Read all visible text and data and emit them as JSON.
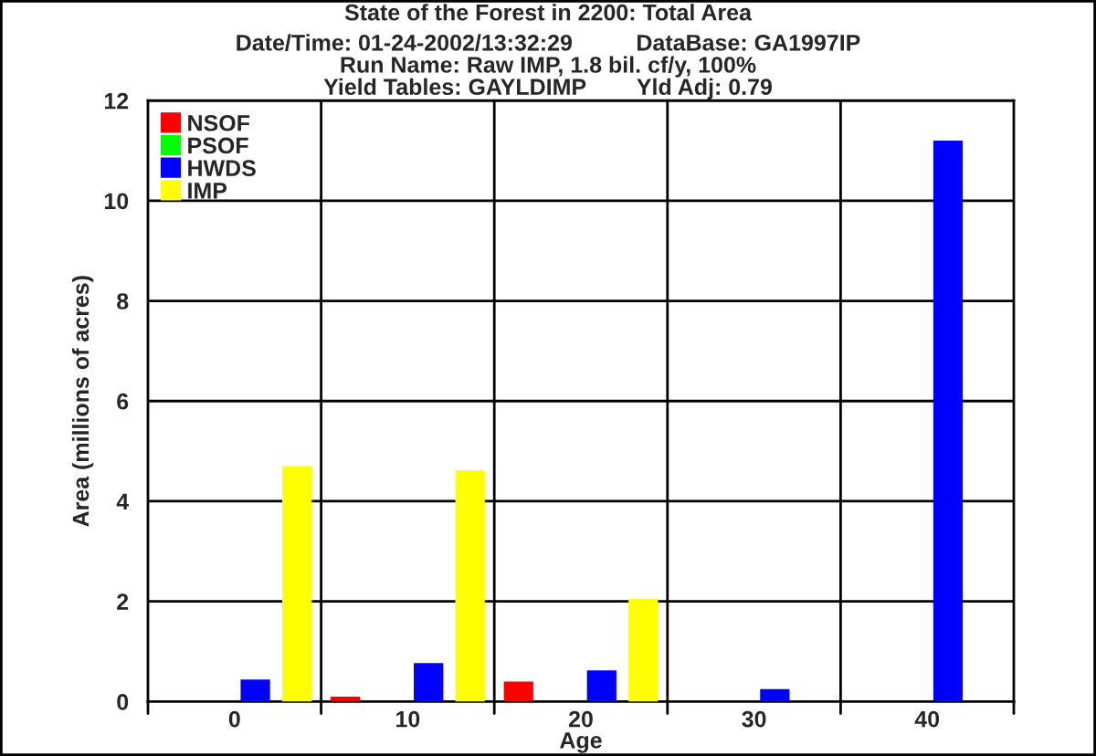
{
  "chart_data": {
    "type": "bar",
    "title": "State of the Forest in 2200: Total Area",
    "subtitle": "Date/Time: 01-24-2002/13:32:29          DataBase: GA1997IP\nRun Name: Raw IMP, 1.8 bil. cf/y, 100%\nYield Tables: GAYLDIMP        Yld Adj: 0.79",
    "xlabel": "Age",
    "ylabel": "Area (millions of acres)",
    "categories": [
      "0",
      "10",
      "20",
      "30",
      "40"
    ],
    "series": [
      {
        "name": "NSOF",
        "color": "#ff0000",
        "values": [
          0,
          0.1,
          0.4,
          0,
          0
        ]
      },
      {
        "name": "PSOF",
        "color": "#00ff00",
        "values": [
          0,
          0,
          0,
          0,
          0
        ]
      },
      {
        "name": "HWDS",
        "color": "#0000ff",
        "values": [
          0.44,
          0.77,
          0.62,
          0.25,
          11.2
        ]
      },
      {
        "name": "IMP",
        "color": "#ffff00",
        "values": [
          4.7,
          4.62,
          2.05,
          0,
          0
        ]
      }
    ],
    "ylim": [
      0,
      12
    ],
    "yticks": [
      0,
      2,
      4,
      6,
      8,
      10,
      12
    ],
    "grid": true,
    "legend": "top left"
  }
}
